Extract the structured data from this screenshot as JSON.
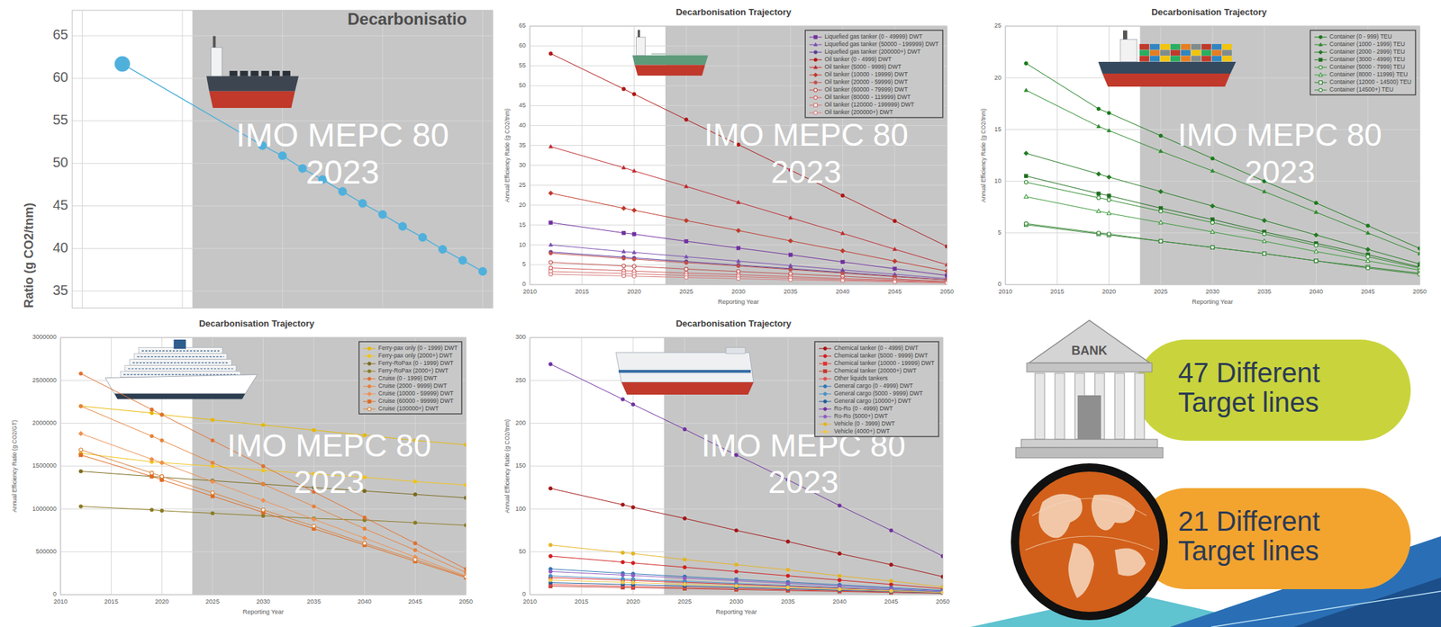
{
  "chart_data": [
    {
      "type": "line",
      "title": "Decarbonisatio",
      "y_label": "Ratio (g CO2/tnm)",
      "annotations": [
        "IMO MEPC 80",
        "2023"
      ],
      "x": [
        2012,
        2019,
        2020,
        2021,
        2022,
        2023,
        2024,
        2025,
        2026,
        2027,
        2028,
        2029,
        2030
      ],
      "xlim": [
        2009.5,
        2030.5
      ],
      "xticks": [
        2010,
        2015,
        2020,
        2025,
        2030
      ],
      "ylim": [
        33,
        68
      ],
      "yticks": [
        35,
        40,
        45,
        50,
        55,
        60,
        65
      ],
      "grid": true,
      "tick_labels": "y",
      "shaded_from": 2015.5,
      "series": [
        {
          "color": "#4fb0dc",
          "marker": "circle",
          "values": [
            61.7,
            52.1,
            50.9,
            49.4,
            48.1,
            46.7,
            45.3,
            44.0,
            42.6,
            41.3,
            39.9,
            38.6,
            37.3
          ]
        }
      ]
    },
    {
      "type": "line",
      "title": "Decarbonisation Trajectory",
      "x_label": "Reporting Year",
      "y_label": "Annual Efficiency Ratio (g CO2/tnm)",
      "annotations": [
        "IMO MEPC 80",
        "2023"
      ],
      "x": [
        2012,
        2019,
        2020,
        2025,
        2030,
        2035,
        2040,
        2045,
        2050
      ],
      "xlim": [
        2010,
        2050
      ],
      "xticks": [
        2010,
        2015,
        2020,
        2025,
        2030,
        2035,
        2040,
        2045,
        2050
      ],
      "ylim": [
        0,
        65
      ],
      "yticks": [
        0,
        5,
        10,
        15,
        20,
        25,
        30,
        35,
        40,
        45,
        50,
        55,
        60,
        65
      ],
      "grid": true,
      "legend": "top-right",
      "shaded_from": 2023,
      "series": [
        {
          "name": "Liquefied gas tanker (0 - 49999) DWT",
          "color": "#7030a0",
          "marker": "square",
          "values": [
            15.6,
            13.0,
            12.7,
            10.9,
            9.2,
            7.5,
            5.7,
            4.0,
            2.3
          ]
        },
        {
          "name": "Liquefied gas tanker (50000 - 199999) DWT",
          "color": "#7a4fb0",
          "marker": "triangle",
          "values": [
            10.0,
            8.3,
            8.1,
            7.0,
            5.9,
            4.8,
            3.7,
            2.6,
            1.5
          ]
        },
        {
          "name": "Liquefied gas tanker (200000+) DWT",
          "color": "#5b3a9a",
          "marker": "circle",
          "values": [
            8.2,
            6.9,
            6.7,
            5.8,
            4.9,
            4.0,
            3.1,
            2.1,
            1.2
          ]
        },
        {
          "name": "Oil tanker (0 - 4999) DWT",
          "color": "#b01515",
          "marker": "circle",
          "values": [
            58.1,
            49.2,
            47.9,
            41.5,
            35.2,
            28.8,
            22.4,
            16.0,
            9.6
          ]
        },
        {
          "name": "Oil tanker (5000 - 9999) DWT",
          "color": "#c0282d",
          "marker": "triangle",
          "values": [
            34.7,
            29.4,
            28.6,
            24.7,
            20.7,
            16.8,
            12.9,
            8.9,
            5.0
          ]
        },
        {
          "name": "Oil tanker (10000 - 19999) DWT",
          "color": "#c0392b",
          "marker": "diamond",
          "values": [
            23.0,
            19.2,
            18.7,
            16.1,
            13.6,
            11.0,
            8.5,
            5.9,
            3.4
          ]
        },
        {
          "name": "Oil tanker (20000 - 59999) DWT",
          "color": "#c0504d",
          "marker": "circle",
          "values": [
            7.9,
            6.6,
            6.4,
            5.5,
            4.7,
            3.8,
            2.9,
            2.0,
            1.2
          ]
        },
        {
          "name": "Oil tanker (60000 - 79999) DWT",
          "color": "#c0504d",
          "marker": "circle-open",
          "values": [
            5.6,
            4.7,
            4.6,
            3.9,
            3.3,
            2.7,
            2.1,
            1.4,
            0.8
          ]
        },
        {
          "name": "Oil tanker (80000 - 119999) DWT",
          "color": "#d06060",
          "marker": "circle-open",
          "values": [
            4.2,
            3.5,
            3.4,
            2.9,
            2.5,
            2.0,
            1.5,
            1.1,
            0.6
          ]
        },
        {
          "name": "Oil tanker (120000 - 199999) DWT",
          "color": "#d47070",
          "marker": "square-open",
          "values": [
            3.3,
            2.8,
            2.7,
            2.3,
            2.0,
            1.6,
            1.2,
            0.9,
            0.5
          ]
        },
        {
          "name": "Oil tanker (200000+) DWT",
          "color": "#d98080",
          "marker": "circle-open",
          "values": [
            2.6,
            2.2,
            2.1,
            1.8,
            1.5,
            1.2,
            1.0,
            0.7,
            0.4
          ]
        }
      ]
    },
    {
      "type": "line",
      "title": "Decarbonisation Trajectory",
      "x_label": "Reporting Year",
      "y_label": "Annual Efficiency Ratio (g CO2/tnm)",
      "annotations": [
        "IMO MEPC 80",
        "2023"
      ],
      "x": [
        2012,
        2019,
        2020,
        2025,
        2030,
        2035,
        2040,
        2045,
        2050
      ],
      "xlim": [
        2010,
        2050
      ],
      "xticks": [
        2010,
        2015,
        2020,
        2025,
        2030,
        2035,
        2040,
        2045,
        2050
      ],
      "ylim": [
        0,
        25
      ],
      "yticks": [
        0,
        5,
        10,
        15,
        20,
        25
      ],
      "grid": true,
      "legend": "top-right",
      "shaded_from": 2023,
      "series": [
        {
          "name": "Container (0 - 999) TEU",
          "color": "#1a7a1a",
          "marker": "circle",
          "values": [
            21.4,
            17.0,
            16.6,
            14.4,
            12.2,
            10.0,
            7.9,
            5.7,
            3.5
          ]
        },
        {
          "name": "Container (1000 - 1999) TEU",
          "color": "#2b8a2b",
          "marker": "triangle",
          "values": [
            18.8,
            15.3,
            14.9,
            12.9,
            11.0,
            9.0,
            7.0,
            5.0,
            3.0
          ]
        },
        {
          "name": "Container (2000 - 2999) TEU",
          "color": "#237a23",
          "marker": "diamond",
          "values": [
            12.7,
            10.7,
            10.4,
            9.0,
            7.6,
            6.2,
            4.8,
            3.4,
            2.0
          ]
        },
        {
          "name": "Container (3000 - 4999) TEU",
          "color": "#1f6e1f",
          "marker": "square",
          "values": [
            10.5,
            8.8,
            8.6,
            7.4,
            6.3,
            5.1,
            4.0,
            2.9,
            1.7
          ]
        },
        {
          "name": "Container (5000 - 7999) TEU",
          "color": "#2e8b2e",
          "marker": "circle-open",
          "values": [
            9.9,
            8.4,
            8.2,
            7.1,
            6.0,
            4.9,
            3.8,
            2.7,
            1.6
          ]
        },
        {
          "name": "Container (8000 - 11999) TEU",
          "color": "#3a9a3a",
          "marker": "triangle-open",
          "values": [
            8.5,
            7.1,
            6.9,
            6.0,
            5.1,
            4.2,
            3.2,
            2.3,
            1.4
          ]
        },
        {
          "name": "Container (12000 - 14500) TEU",
          "color": "#2f7f2f",
          "marker": "square-open",
          "values": [
            5.8,
            4.9,
            4.8,
            4.2,
            3.6,
            3.0,
            2.3,
            1.7,
            1.1
          ]
        },
        {
          "name": "Container (14500+) TEU",
          "color": "#3b8b3b",
          "marker": "circle-open",
          "values": [
            5.9,
            5.0,
            4.9,
            4.2,
            3.6,
            3.0,
            2.3,
            1.6,
            1.0
          ]
        }
      ]
    },
    {
      "type": "line",
      "title": "Decarbonisation Trajectory",
      "x_label": "Reporting Year",
      "y_label": "Annual Efficiency Ratio (g CO2/GT)",
      "annotations": [
        "IMO MEPC 80",
        "2023"
      ],
      "x": [
        2012,
        2019,
        2020,
        2025,
        2030,
        2035,
        2040,
        2045,
        2050
      ],
      "xlim": [
        2010,
        2050
      ],
      "xticks": [
        2010,
        2015,
        2020,
        2025,
        2030,
        2035,
        2040,
        2045,
        2050
      ],
      "ylim": [
        0,
        3000000
      ],
      "yticks": [
        0,
        500000,
        1000000,
        1500000,
        2000000,
        2500000,
        3000000
      ],
      "grid": true,
      "legend": "top-right",
      "shaded_from": 2023,
      "series": [
        {
          "name": "Ferry-pax only (0 - 1999) DWT",
          "color": "#e6b800",
          "marker": "circle",
          "values": [
            2200000,
            2120000,
            2100000,
            2040000,
            1980000,
            1920000,
            1860000,
            1800000,
            1750000
          ]
        },
        {
          "name": "Ferry-pax only (2000+) DWT",
          "color": "#f0c419",
          "marker": "circle",
          "values": [
            1650000,
            1550000,
            1540000,
            1500000,
            1450000,
            1410000,
            1370000,
            1320000,
            1280000
          ]
        },
        {
          "name": "Ferry-RoPax (0 - 1999) DWT",
          "color": "#7a6a1a",
          "marker": "circle",
          "values": [
            1440000,
            1380000,
            1370000,
            1330000,
            1290000,
            1250000,
            1210000,
            1170000,
            1130000
          ]
        },
        {
          "name": "Ferry-RoPax (2000+) DWT",
          "color": "#8a7a20",
          "marker": "circle",
          "values": [
            1030000,
            990000,
            980000,
            950000,
            920000,
            890000,
            870000,
            840000,
            810000
          ]
        },
        {
          "name": "Cruise (0 - 1999) DWT",
          "color": "#e07030",
          "marker": "circle",
          "values": [
            2580000,
            2160000,
            2100000,
            1800000,
            1500000,
            1200000,
            900000,
            600000,
            300000
          ]
        },
        {
          "name": "Cruise (2000 - 9999) DWT",
          "color": "#e8823a",
          "marker": "circle",
          "values": [
            2200000,
            1850000,
            1800000,
            1540000,
            1290000,
            1030000,
            770000,
            520000,
            260000
          ]
        },
        {
          "name": "Cruise (10000 - 59999) DWT",
          "color": "#f09050",
          "marker": "diamond",
          "values": [
            1880000,
            1580000,
            1540000,
            1320000,
            1100000,
            880000,
            660000,
            440000,
            220000
          ]
        },
        {
          "name": "Cruise (60000 - 99999) DWT",
          "color": "#e06a20",
          "marker": "square",
          "values": [
            1630000,
            1380000,
            1340000,
            1150000,
            960000,
            770000,
            580000,
            390000,
            200000
          ]
        },
        {
          "name": "Cruise (100000+) DWT",
          "color": "#d9823a",
          "marker": "circle-open",
          "values": [
            1690000,
            1420000,
            1380000,
            1190000,
            990000,
            800000,
            600000,
            410000,
            210000
          ]
        }
      ]
    },
    {
      "type": "line",
      "title": "Decarbonisation Trajectory",
      "x_label": "Reporting Year",
      "y_label": "Annual Efficiency Ratio (g CO2/tnm)",
      "annotations": [
        "IMO MEPC 80",
        "2023"
      ],
      "x": [
        2012,
        2019,
        2020,
        2025,
        2030,
        2035,
        2040,
        2045,
        2050
      ],
      "xlim": [
        2010,
        2050
      ],
      "xticks": [
        2010,
        2015,
        2020,
        2025,
        2030,
        2035,
        2040,
        2045,
        2050
      ],
      "ylim": [
        0,
        300
      ],
      "yticks": [
        0,
        50,
        100,
        150,
        200,
        250,
        300
      ],
      "grid": true,
      "legend": "top-right",
      "shaded_from": 2023,
      "series": [
        {
          "name": "Chemical tanker (0 - 4999) DWT",
          "color": "#a31515",
          "marker": "circle",
          "values": [
            124,
            105,
            102,
            89,
            75,
            62,
            48,
            35,
            21
          ]
        },
        {
          "name": "Chemical tanker (5000 - 9999) DWT",
          "color": "#d02020",
          "marker": "circle",
          "values": [
            45,
            38,
            37,
            32,
            27,
            22,
            17,
            12,
            7
          ]
        },
        {
          "name": "Chemical tanker (10000 - 19999) DWT",
          "color": "#e03030",
          "marker": "square",
          "values": [
            20,
            17,
            16.5,
            14.3,
            12.0,
            9.8,
            7.5,
            5.3,
            3.0
          ]
        },
        {
          "name": "Chemical tanker (20000+) DWT",
          "color": "#c0392b",
          "marker": "square",
          "values": [
            10,
            8.5,
            8.3,
            7.1,
            6.0,
            4.9,
            3.8,
            2.6,
            1.5
          ]
        },
        {
          "name": "Other liquids tankers",
          "color": "#e05050",
          "marker": "circle",
          "values": [
            12,
            10,
            9.7,
            8.4,
            7.1,
            5.8,
            4.4,
            3.1,
            1.8
          ]
        },
        {
          "name": "General cargo (0 - 4999) DWT",
          "color": "#2e75b6",
          "marker": "circle",
          "values": [
            30,
            25,
            24.4,
            21.1,
            17.9,
            14.7,
            11.5,
            8.2,
            5.0
          ]
        },
        {
          "name": "General cargo (5000 - 9999) DWT",
          "color": "#4a90c8",
          "marker": "circle",
          "values": [
            22,
            18.5,
            18.0,
            15.6,
            13.1,
            10.7,
            8.2,
            5.8,
            3.3
          ]
        },
        {
          "name": "General cargo (10000+) DWT",
          "color": "#1f5f99",
          "marker": "circle",
          "values": [
            14,
            12,
            11.7,
            10.1,
            8.5,
            6.9,
            5.3,
            3.7,
            2.1
          ]
        },
        {
          "name": "Ro-Ro (0 - 4999) DWT",
          "color": "#7030a0",
          "marker": "circle",
          "values": [
            269,
            228,
            222,
            193,
            163,
            134,
            104,
            75,
            45
          ]
        },
        {
          "name": "Ro-Ro (5000+) DWT",
          "color": "#8e5cc0",
          "marker": "circle",
          "values": [
            27,
            23,
            22.4,
            19.3,
            16.3,
            13.2,
            10.1,
            7.1,
            4.0
          ]
        },
        {
          "name": "Vehicle (0 - 3999) DWT",
          "color": "#e6b422",
          "marker": "circle",
          "values": [
            58,
            49,
            48,
            41,
            35,
            29,
            22,
            16,
            9
          ]
        },
        {
          "name": "Vehicle (4000+) DWT",
          "color": "#f0c84a",
          "marker": "circle",
          "values": [
            17,
            14.5,
            14.1,
            12.2,
            10.2,
            8.3,
            6.4,
            4.4,
            2.5
          ]
        }
      ]
    }
  ],
  "badges": [
    {
      "lines": [
        "47 Different",
        "Target lines"
      ],
      "icon_text": "BANK",
      "color": "#c9d43c"
    },
    {
      "lines": [
        "21 Different",
        "Target lines"
      ],
      "color": "#f2a42f"
    }
  ]
}
